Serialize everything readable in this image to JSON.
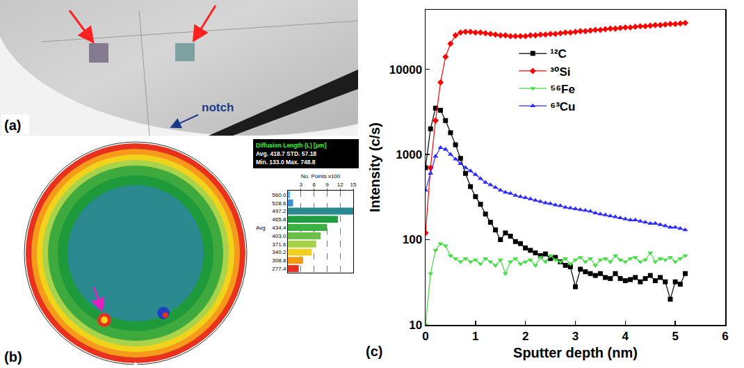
{
  "figure": {
    "a": {
      "letter": "(a)",
      "label": "notch"
    },
    "b": {
      "letter": "(b)",
      "stats_title": "Diffusion Length (L) [µm]",
      "stats": [
        [
          "Avg.",
          "418.7",
          "STD.",
          "57.18"
        ],
        [
          "Min.",
          "133.0",
          "Max.",
          "748.8"
        ]
      ]
    },
    "c": {
      "letter": "(c)"
    }
  },
  "chart_data": [
    {
      "type": "line",
      "x_label": "Sputter depth (nm)",
      "y_label": "Intensity (c/s)",
      "x": [
        0,
        0.1,
        0.2,
        0.3,
        0.4,
        0.5,
        0.6,
        0.7,
        0.8,
        0.9,
        1.0,
        1.1,
        1.2,
        1.3,
        1.4,
        1.5,
        1.6,
        1.7,
        1.8,
        1.9,
        2.0,
        2.1,
        2.2,
        2.3,
        2.4,
        2.5,
        2.6,
        2.7,
        2.8,
        2.9,
        3.0,
        3.1,
        3.2,
        3.3,
        3.4,
        3.5,
        3.6,
        3.7,
        3.8,
        3.9,
        4.0,
        4.1,
        4.2,
        4.3,
        4.4,
        4.5,
        4.6,
        4.7,
        4.8,
        4.9,
        5.0,
        5.1,
        5.2
      ],
      "series": [
        {
          "name": "¹²C",
          "color": "#000000",
          "marker": "square",
          "values": [
            700,
            2000,
            3500,
            3300,
            2500,
            1800,
            1300,
            900,
            600,
            420,
            320,
            260,
            200,
            160,
            130,
            100,
            120,
            110,
            95,
            90,
            80,
            75,
            70,
            65,
            68,
            60,
            62,
            55,
            50,
            48,
            28,
            45,
            42,
            40,
            38,
            40,
            36,
            35,
            40,
            35,
            33,
            34,
            36,
            32,
            35,
            38,
            33,
            36,
            32,
            20,
            32,
            30,
            40
          ]
        },
        {
          "name": "³⁰Si",
          "color": "#ff0000",
          "marker": "diamond",
          "values": [
            120,
            700,
            2500,
            7000,
            14000,
            20000,
            25000,
            27000,
            27500,
            27500,
            27000,
            27000,
            26500,
            26000,
            25500,
            25000,
            25000,
            24500,
            24500,
            24500,
            24500,
            25000,
            25000,
            25500,
            25500,
            26000,
            26000,
            26500,
            27000,
            27000,
            27500,
            28000,
            28000,
            28500,
            29000,
            29000,
            29500,
            30000,
            30000,
            30500,
            31000,
            31000,
            31500,
            32000,
            32000,
            32500,
            33000,
            33000,
            33500,
            34000,
            34000,
            34500,
            35000
          ]
        },
        {
          "name": "⁵⁶Fe",
          "color": "#44dd44",
          "marker": "triangle-down",
          "values": [
            10,
            40,
            75,
            90,
            85,
            65,
            60,
            55,
            60,
            55,
            58,
            52,
            60,
            55,
            50,
            58,
            40,
            55,
            60,
            52,
            55,
            58,
            50,
            62,
            55,
            65,
            58,
            55,
            60,
            52,
            58,
            62,
            55,
            60,
            50,
            58,
            60,
            55,
            65,
            58,
            55,
            60,
            62,
            55,
            58,
            70,
            55,
            60,
            58,
            62,
            55,
            60,
            65
          ]
        },
        {
          "name": "⁶³Cu",
          "color": "#2b2bff",
          "marker": "triangle-up",
          "values": [
            380,
            600,
            950,
            1200,
            1150,
            1000,
            880,
            780,
            700,
            640,
            580,
            520,
            470,
            440,
            410,
            380,
            360,
            350,
            330,
            320,
            310,
            300,
            290,
            280,
            270,
            265,
            255,
            250,
            240,
            235,
            230,
            225,
            220,
            215,
            205,
            200,
            195,
            190,
            185,
            180,
            175,
            170,
            170,
            165,
            160,
            155,
            155,
            150,
            145,
            140,
            140,
            135,
            130
          ]
        }
      ],
      "xlim": [
        0,
        6
      ],
      "xticks": [
        0,
        1,
        2,
        3,
        4,
        5,
        6
      ],
      "ylim": [
        10,
        50000
      ],
      "yticks": [
        10,
        100,
        1000,
        10000
      ],
      "log": "y",
      "grid": false,
      "legend": "upper center"
    },
    {
      "type": "bar",
      "orientation": "horizontal",
      "x_label": "No. Points x100",
      "categories": [
        "560.0",
        "528.6",
        "497.2",
        "465.8",
        "434.4",
        "403.0",
        "371.6",
        "340.2",
        "308.8",
        "277.4"
      ],
      "values": [
        0.5,
        1.2,
        15,
        11.5,
        9,
        7.5,
        6.5,
        5.5,
        3.5,
        2.5
      ],
      "colors": [
        "#5ab4e6",
        "#3d8fd6",
        "#2a8a8f",
        "#1e9e3e",
        "#3cb043",
        "#6cc04a",
        "#a6d24a",
        "#f0d020",
        "#f39c12",
        "#e53222"
      ],
      "xlim": [
        0,
        15
      ],
      "xticks": [
        3,
        6,
        9,
        12,
        15
      ],
      "grid": true,
      "annotations": [
        {
          "text": "Avg",
          "category": "434.4"
        }
      ]
    }
  ]
}
